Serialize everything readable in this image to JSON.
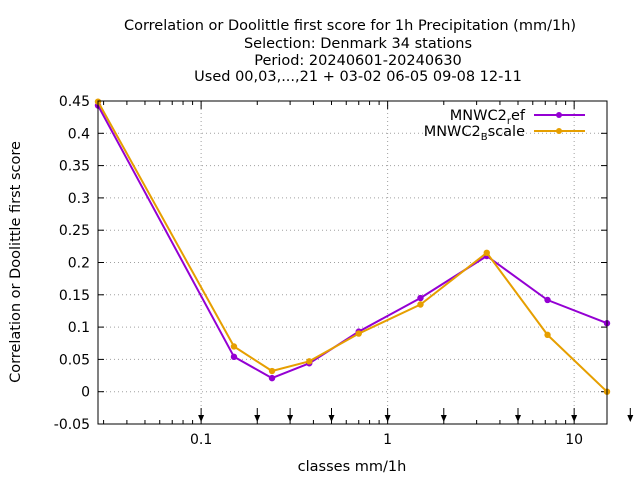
{
  "chart_data": {
    "type": "line",
    "title_lines": [
      "Correlation or Doolittle first score  for 1h Precipitation (mm/1h)",
      "Selection: Denmark     34 stations",
      "Period: 20240601-20240630",
      "Used 00,03,...,21 + 03-02 06-05 09-08 12-11"
    ],
    "xlabel": "classes mm/1h",
    "ylabel": "Correlation or Doolittle first score",
    "x_scale": "log",
    "xlim": [
      0.028,
      15
    ],
    "ylim": [
      -0.05,
      0.45
    ],
    "x_ticks": [
      {
        "value": 0.1,
        "label": "0.1"
      },
      {
        "value": 1,
        "label": "1"
      },
      {
        "value": 10,
        "label": "10"
      }
    ],
    "y_ticks": [
      {
        "value": 0.45,
        "label": "0.45"
      },
      {
        "value": 0.4,
        "label": "0.4"
      },
      {
        "value": 0.35,
        "label": "0.35"
      },
      {
        "value": 0.3,
        "label": "0.3"
      },
      {
        "value": 0.25,
        "label": "0.25"
      },
      {
        "value": 0.2,
        "label": "0.2"
      },
      {
        "value": 0.15,
        "label": "0.15"
      },
      {
        "value": 0.1,
        "label": "0.1"
      },
      {
        "value": 0.05,
        "label": "0.05"
      },
      {
        "value": 0,
        "label": "0"
      },
      {
        "value": -0.05,
        "label": "-0.05"
      }
    ],
    "grid": true,
    "legend_position": "top-right",
    "class_arrows_x": [
      0.1,
      0.2,
      0.3,
      0.5,
      1,
      2,
      5,
      10,
      20
    ],
    "series": [
      {
        "name": "MNWC2_ref",
        "legend_main": "MNWC2",
        "legend_sub": "r",
        "legend_tail": "ef",
        "color": "#9400d3",
        "x": [
          0.028,
          0.15,
          0.24,
          0.38,
          0.7,
          1.5,
          3.4,
          7.2,
          15
        ],
        "y": [
          0.443,
          0.054,
          0.021,
          0.044,
          0.093,
          0.145,
          0.21,
          0.142,
          0.106
        ]
      },
      {
        "name": "MNWC2_Bscale",
        "legend_main": "MNWC2",
        "legend_sub": "B",
        "legend_tail": "scale",
        "color": "#e69f00",
        "x": [
          0.028,
          0.15,
          0.24,
          0.38,
          0.7,
          1.5,
          3.4,
          7.2,
          15
        ],
        "y": [
          0.449,
          0.07,
          0.032,
          0.047,
          0.09,
          0.135,
          0.215,
          0.088,
          0.0
        ]
      }
    ]
  }
}
